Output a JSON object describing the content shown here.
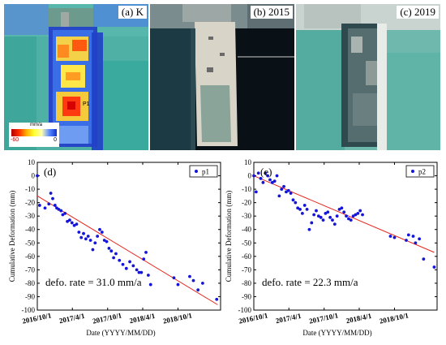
{
  "panels": [
    {
      "label": "(a) K"
    },
    {
      "label": "(b) 2015"
    },
    {
      "label": "(c) 2019"
    }
  ],
  "colorbar": {
    "unit": "mm/a",
    "min_label": "-60",
    "max_label": "0",
    "min": -60,
    "max": 0
  },
  "chart_data": [
    {
      "type": "scatter",
      "panel_label": "(d)",
      "legend": "p1",
      "legend_position": "top-right",
      "annotation": "defo. rate = 31.0 mm/a",
      "xlabel": "Date (YYYY/MM/DD)",
      "ylabel": "Cumulative Deformation (mm)",
      "xticks": [
        "2016/10/1",
        "2017/4/1",
        "2017/10/1",
        "2018/4/1",
        "2018/10/1"
      ],
      "yticks": [
        "10",
        "0",
        "-10",
        "-20",
        "-30",
        "-40",
        "-50",
        "-60",
        "-70",
        "-80",
        "-90",
        "-100"
      ],
      "ylim": [
        -100,
        10
      ],
      "xlim": [
        "2016/10/1",
        "2019/5/10"
      ],
      "colors": {
        "points": "#1515d8",
        "fit": "#e8261e"
      },
      "fit_line": {
        "x": [
          "2016/10/1",
          "2019/4/25"
        ],
        "y": [
          -15,
          -96
        ]
      },
      "x": [
        "2016/10/1",
        "2016/10/13",
        "2016/11/10",
        "2016/11/30",
        "2016/12/10",
        "2016/12/20",
        "2017/1/1",
        "2017/1/10",
        "2017/1/20",
        "2017/2/1",
        "2017/2/10",
        "2017/2/22",
        "2017/3/6",
        "2017/3/18",
        "2017/3/30",
        "2017/4/11",
        "2017/4/23",
        "2017/5/5",
        "2017/5/17",
        "2017/5/29",
        "2017/6/10",
        "2017/6/22",
        "2017/7/4",
        "2017/7/16",
        "2017/7/28",
        "2017/8/9",
        "2017/8/21",
        "2017/9/2",
        "2017/9/14",
        "2017/9/26",
        "2017/10/8",
        "2017/10/20",
        "2017/11/1",
        "2017/11/13",
        "2017/12/1",
        "2017/12/19",
        "2018/1/6",
        "2018/1/24",
        "2018/2/11",
        "2018/3/1",
        "2018/3/13",
        "2018/3/25",
        "2018/4/6",
        "2018/4/18",
        "2018/4/30",
        "2018/5/12",
        "2018/9/10",
        "2018/10/1",
        "2018/12/1",
        "2018/12/20",
        "2019/1/13",
        "2019/2/6",
        "2019/4/20"
      ],
      "y": [
        0,
        -22,
        -24,
        -21,
        -13,
        -17,
        -22,
        -24,
        -25,
        -26,
        -29,
        -28,
        -34,
        -33,
        -35,
        -37,
        -36,
        -42,
        -46,
        -43,
        -47,
        -45,
        -48,
        -55,
        -50,
        -45,
        -40,
        -42,
        -48,
        -49,
        -54,
        -56,
        -61,
        -58,
        -63,
        -66,
        -69,
        -64,
        -67,
        -70,
        -72,
        -72,
        -62,
        -57,
        -74,
        -81,
        -76,
        -81,
        -75,
        -78,
        -85,
        -80,
        -92
      ]
    },
    {
      "type": "scatter",
      "panel_label": "(e)",
      "legend": "p2",
      "legend_position": "top-right",
      "annotation": "defo. rate = 22.3 mm/a",
      "xlabel": "Date (YYYY/MM/DD)",
      "ylabel": "Cumulative Deformation (mm)",
      "xticks": [
        "2016/10/1",
        "2017/4/1",
        "2017/10/1",
        "2018/4/1",
        "2018/10/1"
      ],
      "yticks": [
        "10",
        "0",
        "-10",
        "-20",
        "-30",
        "-40",
        "-50",
        "-60",
        "-70",
        "-80",
        "-90",
        "-100"
      ],
      "ylim": [
        -100,
        10
      ],
      "xlim": [
        "2016/10/1",
        "2019/5/10"
      ],
      "colors": {
        "points": "#1515d8",
        "fit": "#e8261e"
      },
      "fit_line": {
        "x": [
          "2016/10/1",
          "2019/4/25"
        ],
        "y": [
          0,
          -57
        ]
      },
      "x": [
        "2016/10/1",
        "2016/10/13",
        "2016/10/25",
        "2016/11/6",
        "2016/11/18",
        "2016/11/30",
        "2016/12/12",
        "2016/12/24",
        "2017/1/5",
        "2017/1/17",
        "2017/1/29",
        "2017/2/10",
        "2017/2/22",
        "2017/3/6",
        "2017/3/18",
        "2017/3/30",
        "2017/4/11",
        "2017/4/23",
        "2017/5/5",
        "2017/5/17",
        "2017/5/29",
        "2017/6/10",
        "2017/6/22",
        "2017/7/4",
        "2017/7/16",
        "2017/7/28",
        "2017/8/9",
        "2017/8/21",
        "2017/9/2",
        "2017/9/14",
        "2017/9/26",
        "2017/10/8",
        "2017/10/20",
        "2017/11/1",
        "2017/11/13",
        "2017/11/25",
        "2017/12/7",
        "2017/12/19",
        "2017/12/31",
        "2018/1/12",
        "2018/1/24",
        "2018/2/5",
        "2018/2/17",
        "2018/3/1",
        "2018/3/13",
        "2018/3/25",
        "2018/4/6",
        "2018/4/18",
        "2018/9/10",
        "2018/10/1",
        "2018/12/1",
        "2018/12/13",
        "2019/1/6",
        "2019/1/18",
        "2019/2/7",
        "2019/3/1",
        "2019/4/25"
      ],
      "y": [
        0,
        -12,
        2,
        -2,
        -5,
        2,
        0,
        -3,
        -5,
        -4,
        0,
        -15,
        -10,
        -8,
        -12,
        -11,
        -13,
        -18,
        -20,
        -24,
        -25,
        -28,
        -22,
        -25,
        -40,
        -35,
        -29,
        -26,
        -30,
        -31,
        -33,
        -28,
        -27,
        -31,
        -33,
        -36,
        -30,
        -25,
        -24,
        -27,
        -30,
        -32,
        -33,
        -30,
        -29,
        -28,
        -26,
        -29,
        -45,
        -46,
        -48,
        -44,
        -45,
        -50,
        -47,
        -62,
        -68
      ]
    }
  ]
}
